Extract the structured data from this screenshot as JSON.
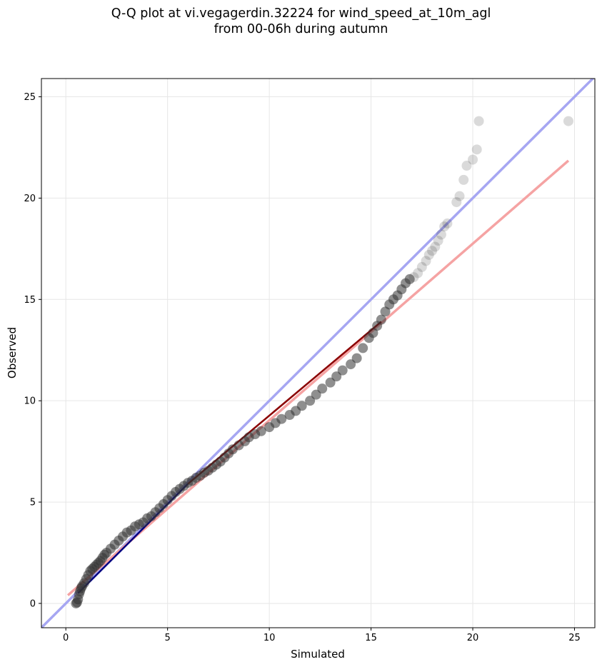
{
  "chart_data": {
    "type": "scatter",
    "title_lines": [
      "Q-Q plot at vi.vegagerdin.32224 for wind_speed_at_10m_agl",
      "from 00-06h during autumn"
    ],
    "xlabel": "Simulated",
    "ylabel": "Observed",
    "xlim": [
      -1.2,
      26.0
    ],
    "ylim": [
      -1.2,
      25.9
    ],
    "x_ticks": [
      0,
      5,
      10,
      15,
      20,
      25
    ],
    "y_ticks": [
      0,
      5,
      10,
      15,
      20,
      25
    ],
    "grid": true,
    "colors": {
      "points": "#333333",
      "identity_line": "#a6a6f2",
      "fit_line": "#f5a3a3",
      "lower_quantile_line": "#000080",
      "middle_quantile_line": "#8b0000"
    },
    "identity_line": {
      "x": [
        -1.2,
        26.0
      ],
      "y": [
        -1.2,
        26.0
      ]
    },
    "fit_line": {
      "x": [
        0.1,
        24.7
      ],
      "y": [
        0.4,
        21.85
      ]
    },
    "lower_quantile_line": {
      "x": [
        0.6,
        6.0
      ],
      "y": [
        0.5,
        5.9
      ]
    },
    "middle_quantile_line": {
      "x": [
        6.0,
        15.5
      ],
      "y": [
        5.9,
        13.9
      ]
    },
    "points": {
      "x": [
        0.5,
        0.55,
        0.6,
        0.65,
        0.7,
        0.75,
        0.8,
        0.9,
        1.0,
        1.1,
        1.2,
        1.3,
        1.4,
        1.5,
        1.6,
        1.7,
        1.8,
        1.9,
        2.0,
        2.2,
        2.4,
        2.6,
        2.8,
        3.0,
        3.2,
        3.4,
        3.6,
        3.8,
        4.0,
        4.2,
        4.4,
        4.6,
        4.8,
        5.0,
        5.2,
        5.4,
        5.6,
        5.8,
        6.0,
        6.2,
        6.4,
        6.6,
        6.8,
        7.0,
        7.2,
        7.4,
        7.6,
        7.8,
        8.0,
        8.2,
        8.5,
        8.8,
        9.0,
        9.3,
        9.6,
        10.0,
        10.3,
        10.6,
        11.0,
        11.3,
        11.6,
        12.0,
        12.3,
        12.6,
        13.0,
        13.3,
        13.6,
        14.0,
        14.3,
        14.6,
        14.9,
        15.1,
        15.3,
        15.5,
        15.7,
        15.9,
        16.1,
        16.3,
        16.5,
        16.7,
        16.9,
        17.1,
        17.3,
        17.5,
        17.7,
        17.85,
        18.0,
        18.15,
        18.3,
        18.45,
        18.6,
        18.75,
        19.2,
        19.35,
        19.55,
        19.7,
        20.0,
        20.2,
        20.3,
        24.7
      ],
      "y": [
        0.0,
        0.05,
        0.2,
        0.45,
        0.6,
        0.75,
        0.85,
        1.0,
        1.2,
        1.4,
        1.6,
        1.7,
        1.8,
        1.9,
        2.0,
        2.1,
        2.25,
        2.4,
        2.5,
        2.7,
        2.9,
        3.1,
        3.3,
        3.5,
        3.6,
        3.8,
        3.9,
        4.0,
        4.2,
        4.3,
        4.5,
        4.7,
        4.9,
        5.1,
        5.3,
        5.5,
        5.65,
        5.8,
        5.95,
        6.05,
        6.2,
        6.3,
        6.45,
        6.55,
        6.7,
        6.85,
        7.0,
        7.2,
        7.4,
        7.6,
        7.8,
        8.0,
        8.2,
        8.35,
        8.5,
        8.7,
        8.9,
        9.1,
        9.3,
        9.5,
        9.75,
        10.0,
        10.3,
        10.6,
        10.9,
        11.2,
        11.5,
        11.8,
        12.1,
        12.6,
        13.1,
        13.35,
        13.7,
        14.0,
        14.4,
        14.75,
        15.0,
        15.2,
        15.5,
        15.8,
        16.0,
        16.1,
        16.3,
        16.6,
        16.9,
        17.2,
        17.4,
        17.6,
        17.9,
        18.2,
        18.6,
        18.75,
        19.8,
        20.1,
        20.9,
        21.6,
        21.9,
        22.4,
        23.8,
        23.8
      ]
    }
  }
}
